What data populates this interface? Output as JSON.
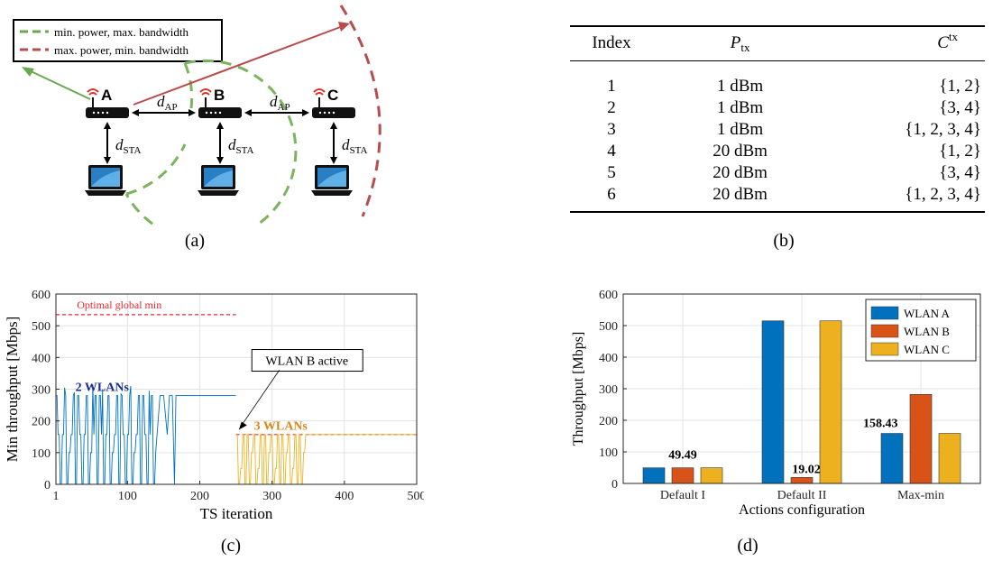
{
  "panel_a": {
    "caption": "(a)",
    "legend": [
      {
        "label": "min. power, max. bandwidth",
        "color": "#6aa84f"
      },
      {
        "label": "max. power, min. bandwidth",
        "color": "#b84c4c"
      }
    ],
    "ap_labels": [
      "A",
      "B",
      "C"
    ],
    "d_ap": {
      "main": "d",
      "sub": "AP"
    },
    "d_sta": {
      "main": "d",
      "sub": "STA"
    }
  },
  "panel_b": {
    "caption": "(b)",
    "headers": {
      "index": "Index",
      "ptx_main": "P",
      "ptx_sub": "tx",
      "ctx_main": "C",
      "ctx_sup": "tx"
    },
    "rows": [
      {
        "index": "1",
        "ptx": "1 dBm",
        "ctx": "{1, 2}"
      },
      {
        "index": "2",
        "ptx": "1 dBm",
        "ctx": "{3, 4}"
      },
      {
        "index": "3",
        "ptx": "1 dBm",
        "ctx": "{1, 2, 3, 4}"
      },
      {
        "index": "4",
        "ptx": "20 dBm",
        "ctx": "{1, 2}"
      },
      {
        "index": "5",
        "ptx": "20 dBm",
        "ctx": "{3, 4}"
      },
      {
        "index": "6",
        "ptx": "20 dBm",
        "ctx": "{1, 2, 3, 4}"
      }
    ]
  },
  "panel_c": {
    "caption": "(c)",
    "xlabel": "TS iteration",
    "ylabel": "Min throughput [Mbps]",
    "xticks": [
      "1",
      "100",
      "200",
      "300",
      "400",
      "500"
    ],
    "yticks": [
      "0",
      "100",
      "200",
      "300",
      "400",
      "500",
      "600"
    ],
    "label_optimal": "Optimal global min",
    "label_2wlans": "2 WLANs",
    "label_3wlans": "3 WLANs",
    "annotation": "WLAN B active"
  },
  "panel_d": {
    "caption": "(d)",
    "xlabel": "Actions configuration",
    "ylabel": "Throughput [Mbps]",
    "yticks": [
      "0",
      "100",
      "200",
      "300",
      "400",
      "500",
      "600"
    ],
    "legend": [
      "WLAN A",
      "WLAN B",
      "WLAN C"
    ],
    "value_labels": [
      "49.49",
      "19.02",
      "158.43"
    ]
  },
  "colors": {
    "wlan_a": "#0072BD",
    "wlan_b": "#D95319",
    "wlan_c": "#EDB120",
    "optimal": "#e8282e",
    "label_2wlans": "#1a2f8c",
    "label_3wlans": "#d9871a"
  },
  "chart_data": [
    {
      "type": "line",
      "title": "",
      "xlabel": "TS iteration",
      "ylabel": "Min throughput [Mbps]",
      "xlim": [
        1,
        500
      ],
      "ylim": [
        0,
        600
      ],
      "grid": true,
      "series": [
        {
          "values_description_free": true,
          "x": [
            1,
            20,
            40,
            60,
            80,
            100,
            120,
            140,
            160,
            165,
            170,
            175,
            200,
            250
          ],
          "values": [
            157,
            0,
            280,
            0,
            157,
            0,
            280,
            0,
            280,
            0,
            280,
            280,
            280,
            280
          ]
        },
        {
          "x": [
            250,
            260,
            280,
            300,
            320,
            340,
            350,
            400,
            500
          ],
          "values": [
            0,
            157,
            0,
            157,
            0,
            157,
            157,
            157,
            157
          ]
        }
      ],
      "reference_lines": [
        {
          "y": 535,
          "x": [
            1,
            250
          ]
        },
        {
          "y": 157,
          "x": [
            250,
            500
          ]
        }
      ]
    },
    {
      "type": "bar",
      "title": "",
      "xlabel": "Actions configuration",
      "ylabel": "Throughput [Mbps]",
      "ylim": [
        0,
        600
      ],
      "grid": true,
      "legend_position": "top-right",
      "categories": [
        "Default I",
        "Default II",
        "Max-min"
      ],
      "series": [
        {
          "name": "WLAN A",
          "values": [
            49.49,
            515,
            158.43
          ]
        },
        {
          "name": "WLAN B",
          "values": [
            49.49,
            19.02,
            282
          ]
        },
        {
          "name": "WLAN C",
          "values": [
            49.49,
            515,
            158.43
          ]
        }
      ]
    }
  ]
}
